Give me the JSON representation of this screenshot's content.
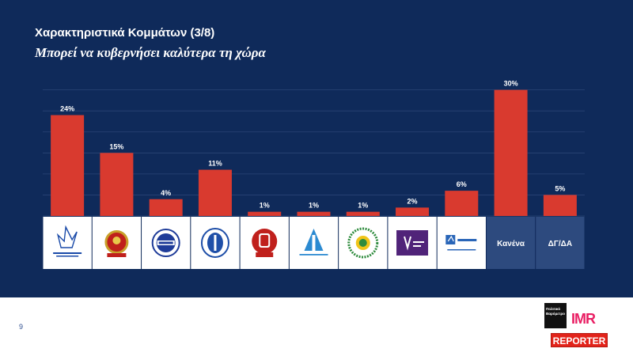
{
  "header": {
    "title": "Χαρακτηριστικά Κομμάτων (3/8)",
    "subtitle": "Μπορεί να κυβερνήσει καλύτερα τη χώρα"
  },
  "colors": {
    "background": "#0f2a5a",
    "bar": "#d93a2f",
    "tile_logo": "#ffffff",
    "tile_text": "#2d4a7e"
  },
  "chart_data": {
    "type": "bar",
    "categories": [
      {
        "label": "",
        "logo": "disy-logo"
      },
      {
        "label": "",
        "logo": "akel-logo"
      },
      {
        "label": "",
        "logo": "diko-logo"
      },
      {
        "label": "",
        "logo": "elam-logo"
      },
      {
        "label": "",
        "logo": "edek-logo"
      },
      {
        "label": "",
        "logo": "dipa-logo"
      },
      {
        "label": "",
        "logo": "ecologists-logo"
      },
      {
        "label": "",
        "logo": "volt-logo"
      },
      {
        "label": "",
        "logo": "alma-logo"
      },
      {
        "label": "Κανένα",
        "logo": null
      },
      {
        "label": "ΔΓ/ΔΑ",
        "logo": null
      }
    ],
    "values": [
      24,
      15,
      4,
      11,
      1,
      1,
      1,
      2,
      6,
      30,
      5
    ],
    "value_labels": [
      "24%",
      "15%",
      "4%",
      "11%",
      "1%",
      "1%",
      "1%",
      "2%",
      "6%",
      "30%",
      "5%"
    ],
    "ylim": [
      0,
      32
    ],
    "grid": true,
    "legend": "none"
  },
  "footer": {
    "page_number": "9",
    "brand_box_text": "Πολιτικό Βαρόμετρο",
    "imr_text": "IMR",
    "reporter_label": "REPORTER"
  }
}
